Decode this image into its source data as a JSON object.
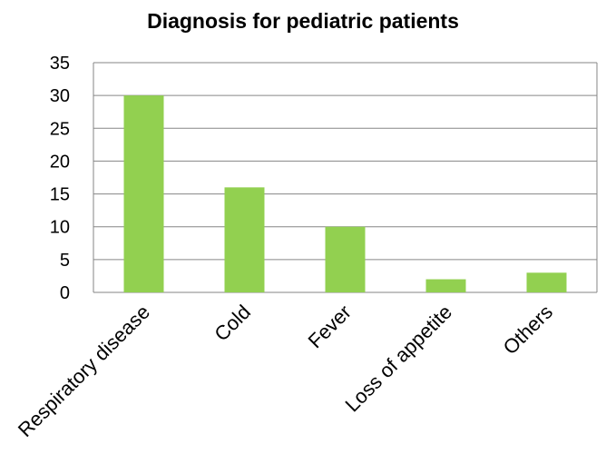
{
  "chart_data": {
    "type": "bar",
    "title": "Diagnosis for pediatric patients",
    "categories": [
      "Respiratory disease",
      "Cold",
      "Fever",
      "Loss of appetite",
      "Others"
    ],
    "values": [
      30,
      16,
      10,
      2,
      3
    ],
    "ylim": [
      0,
      35
    ],
    "yticks": [
      0,
      5,
      10,
      15,
      20,
      25,
      30,
      35
    ],
    "xlabel": "",
    "ylabel": "",
    "grid": true,
    "legend": "none",
    "bar_color": "#92d050",
    "grid_color": "#868686"
  }
}
